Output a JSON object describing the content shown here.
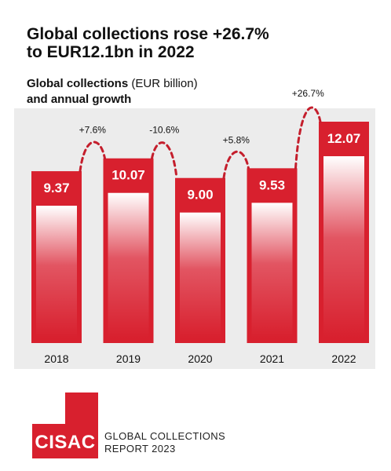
{
  "headline": {
    "line1": "Global collections rose +26.7%",
    "line2": "to EUR12.1bn in 2022"
  },
  "subtitle": {
    "bold": "Global collections",
    "unit": "(EUR billion)",
    "line2": "and annual growth"
  },
  "chart_data": {
    "type": "bar",
    "title": "Global collections (EUR billion) and annual growth",
    "categories": [
      "2018",
      "2019",
      "2020",
      "2021",
      "2022"
    ],
    "values": [
      9.37,
      10.07,
      9.0,
      9.53,
      12.07
    ],
    "value_labels": [
      "9.37",
      "10.07",
      "9.00",
      "9.53",
      "12.07"
    ],
    "growth_labels": [
      "+7.6%",
      "-10.6%",
      "+5.8%",
      "+26.7%"
    ],
    "xlabel": "",
    "ylabel": "",
    "grid": false,
    "legend": "none",
    "colors": {
      "bar": "#d8202e",
      "bar_fade": "#ffffff",
      "panel": "#ececec",
      "connector": "#c41e2c"
    }
  },
  "footer": {
    "logo_text": "CISAC",
    "report_line1": "GLOBAL COLLECTIONS",
    "report_line2": "REPORT 2023"
  }
}
